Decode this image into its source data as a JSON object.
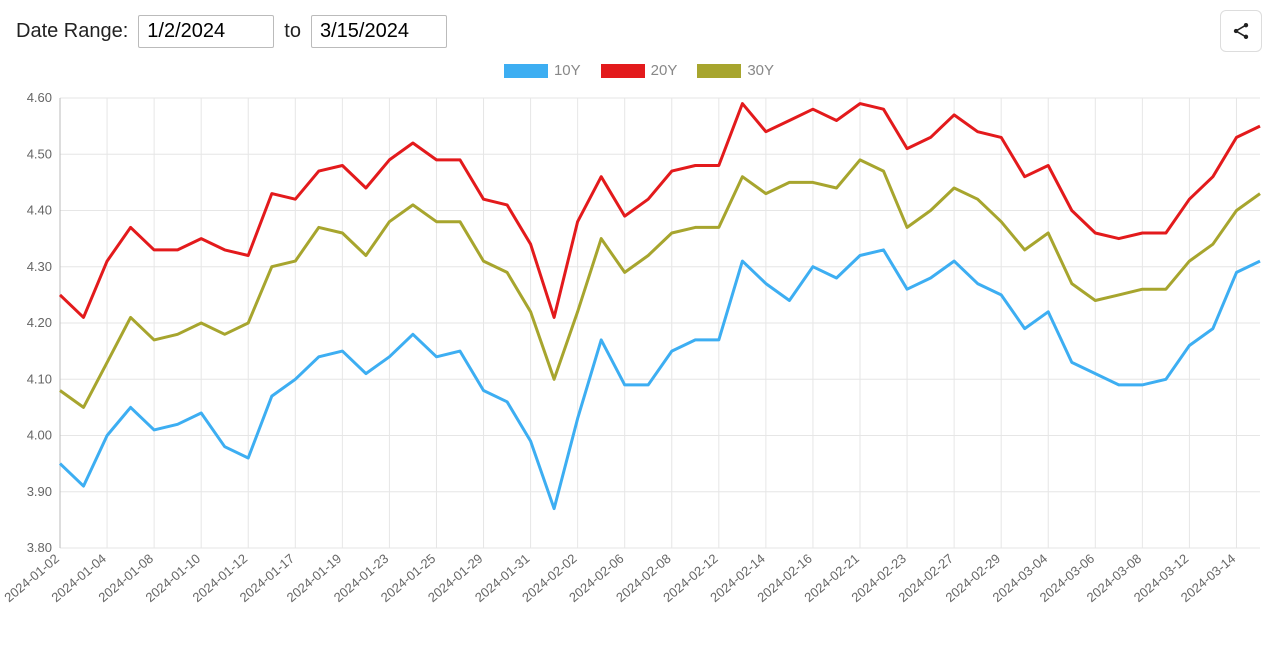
{
  "toolbar": {
    "date_range_label": "Date Range:",
    "from_value": "1/2/2024",
    "to_label": "to",
    "to_value": "3/15/2024"
  },
  "chart": {
    "type": "line",
    "background_color": "#ffffff",
    "grid_color": "#e6e6e6",
    "axis_color": "#bbbbbb",
    "tick_label_color": "#666666",
    "tick_fontsize": 13,
    "line_width": 3,
    "ylim": [
      3.8,
      4.6
    ],
    "ytick_step": 0.1,
    "yticks": [
      "3.80",
      "3.90",
      "4.00",
      "4.10",
      "4.20",
      "4.30",
      "4.40",
      "4.50",
      "4.60"
    ],
    "x_dates": [
      "2024-01-02",
      "2024-01-03",
      "2024-01-04",
      "2024-01-05",
      "2024-01-08",
      "2024-01-09",
      "2024-01-10",
      "2024-01-11",
      "2024-01-12",
      "2024-01-16",
      "2024-01-17",
      "2024-01-18",
      "2024-01-19",
      "2024-01-22",
      "2024-01-23",
      "2024-01-24",
      "2024-01-25",
      "2024-01-26",
      "2024-01-29",
      "2024-01-30",
      "2024-01-31",
      "2024-02-01",
      "2024-02-02",
      "2024-02-05",
      "2024-02-06",
      "2024-02-07",
      "2024-02-08",
      "2024-02-09",
      "2024-02-12",
      "2024-02-13",
      "2024-02-14",
      "2024-02-15",
      "2024-02-16",
      "2024-02-20",
      "2024-02-21",
      "2024-02-22",
      "2024-02-23",
      "2024-02-26",
      "2024-02-27",
      "2024-02-28",
      "2024-02-29",
      "2024-03-01",
      "2024-03-04",
      "2024-03-05",
      "2024-03-06",
      "2024-03-07",
      "2024-03-08",
      "2024-03-11",
      "2024-03-12",
      "2024-03-13",
      "2024-03-14",
      "2024-03-15"
    ],
    "x_tick_labels": [
      "2024-01-02",
      "2024-01-04",
      "2024-01-08",
      "2024-01-10",
      "2024-01-12",
      "2024-01-17",
      "2024-01-19",
      "2024-01-23",
      "2024-01-25",
      "2024-01-29",
      "2024-01-31",
      "2024-02-02",
      "2024-02-06",
      "2024-02-08",
      "2024-02-12",
      "2024-02-14",
      "2024-02-16",
      "2024-02-21",
      "2024-02-23",
      "2024-02-27",
      "2024-02-29",
      "2024-03-04",
      "2024-03-06",
      "2024-03-08",
      "2024-03-12",
      "2024-03-14"
    ],
    "x_tick_label_rotation_deg": 40,
    "legend": {
      "items": [
        {
          "label": "10Y",
          "color": "#3daef2"
        },
        {
          "label": "20Y",
          "color": "#e31a1c"
        },
        {
          "label": "30Y",
          "color": "#a7a52e"
        }
      ],
      "swatch_width": 44,
      "swatch_height": 14,
      "fontsize": 15,
      "label_color": "#888888"
    },
    "series": [
      {
        "name": "10Y",
        "color": "#3daef2",
        "values": [
          3.95,
          3.91,
          4.0,
          4.05,
          4.01,
          4.02,
          4.04,
          3.98,
          3.96,
          4.07,
          4.1,
          4.14,
          4.15,
          4.11,
          4.14,
          4.18,
          4.14,
          4.15,
          4.08,
          4.06,
          3.99,
          3.87,
          4.03,
          4.17,
          4.09,
          4.09,
          4.15,
          4.17,
          4.17,
          4.31,
          4.27,
          4.24,
          4.3,
          4.28,
          4.32,
          4.33,
          4.26,
          4.28,
          4.31,
          4.27,
          4.25,
          4.19,
          4.22,
          4.13,
          4.11,
          4.09,
          4.09,
          4.1,
          4.16,
          4.19,
          4.29,
          4.31
        ]
      },
      {
        "name": "20Y",
        "color": "#e31a1c",
        "values": [
          4.25,
          4.21,
          4.31,
          4.37,
          4.33,
          4.33,
          4.35,
          4.33,
          4.32,
          4.43,
          4.42,
          4.47,
          4.48,
          4.44,
          4.49,
          4.52,
          4.49,
          4.49,
          4.42,
          4.41,
          4.34,
          4.21,
          4.38,
          4.46,
          4.39,
          4.42,
          4.47,
          4.48,
          4.48,
          4.59,
          4.54,
          4.56,
          4.58,
          4.56,
          4.59,
          4.58,
          4.51,
          4.53,
          4.57,
          4.54,
          4.53,
          4.46,
          4.48,
          4.4,
          4.36,
          4.35,
          4.36,
          4.36,
          4.42,
          4.46,
          4.53,
          4.55
        ]
      },
      {
        "name": "30Y",
        "color": "#a7a52e",
        "values": [
          4.08,
          4.05,
          4.13,
          4.21,
          4.17,
          4.18,
          4.2,
          4.18,
          4.2,
          4.3,
          4.31,
          4.37,
          4.36,
          4.32,
          4.38,
          4.41,
          4.38,
          4.38,
          4.31,
          4.29,
          4.22,
          4.1,
          4.22,
          4.35,
          4.29,
          4.32,
          4.36,
          4.37,
          4.37,
          4.46,
          4.43,
          4.45,
          4.45,
          4.44,
          4.49,
          4.47,
          4.37,
          4.4,
          4.44,
          4.42,
          4.38,
          4.33,
          4.36,
          4.27,
          4.24,
          4.25,
          4.26,
          4.26,
          4.31,
          4.34,
          4.4,
          4.43
        ]
      }
    ]
  }
}
